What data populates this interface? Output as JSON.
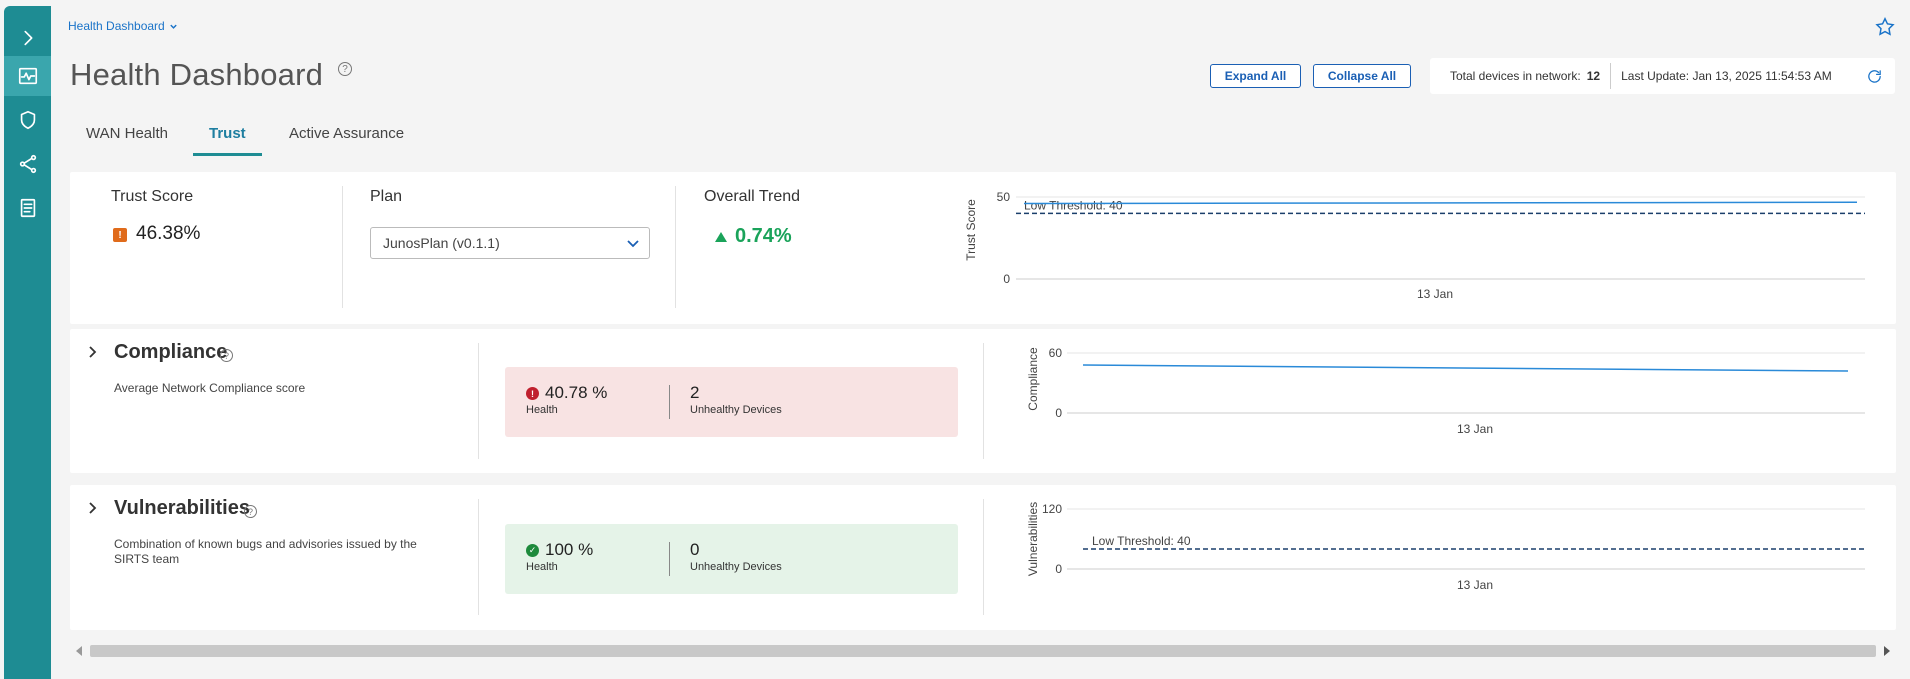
{
  "breadcrumb": "Health Dashboard",
  "page_title": "Health Dashboard",
  "help_glyph": "?",
  "buttons": {
    "expand_all": "Expand All",
    "collapse_all": "Collapse All"
  },
  "info": {
    "total_devices_label": "Total devices in network:",
    "total_devices_value": "12",
    "last_update": "Last Update: Jan 13, 2025 11:54:53 AM"
  },
  "tabs": [
    {
      "label": "WAN Health",
      "active": false
    },
    {
      "label": "Trust",
      "active": true
    },
    {
      "label": "Active Assurance",
      "active": false
    }
  ],
  "trust": {
    "score_label": "Trust Score",
    "score_value": "46.38%",
    "score_icon": "!",
    "plan_label": "Plan",
    "plan_value": "JunosPlan (v0.1.1)",
    "trend_label": "Overall Trend",
    "trend_value": "0.74%"
  },
  "compliance": {
    "title": "Compliance",
    "description": "Average Network Compliance score",
    "health_value": "40.78 %",
    "health_label": "Health",
    "health_icon": "!",
    "unhealthy_value": "2",
    "unhealthy_label": "Unhealthy Devices"
  },
  "vulnerabilities": {
    "title": "Vulnerabilities",
    "description": "Combination of known bugs and advisories issued by the SIRTS team",
    "health_value": "100 %",
    "health_label": "Health",
    "health_icon": "✓",
    "unhealthy_value": "0",
    "unhealthy_label": "Unhealthy Devices"
  },
  "colors": {
    "rail": "#1e8c93",
    "accent": "#1a5fb4",
    "line": "#2a8ad8",
    "threshold": "#1a3f6b",
    "trend_up": "#1aa35a",
    "warning": "#e06b1b",
    "error": "#c0202e",
    "success": "#1e8a3c"
  },
  "icons": [
    "chevron-right-icon",
    "pulse-icon",
    "shield-icon",
    "share-nodes-icon",
    "document-icon",
    "star-icon",
    "refresh-icon",
    "chevron-down-icon",
    "help-icon"
  ],
  "chart_data": [
    {
      "type": "line",
      "ylabel": "Trust Score",
      "ylim": [
        0,
        50
      ],
      "yticks": [
        "50",
        "0"
      ],
      "xtick": "13 Jan",
      "threshold": {
        "label": "Low Threshold: 40",
        "value": 40
      },
      "series": [
        {
          "values": [
            46.0,
            46.8
          ]
        }
      ]
    },
    {
      "type": "line",
      "ylabel": "Compliance",
      "ylim": [
        0,
        60
      ],
      "yticks": [
        "60",
        "0"
      ],
      "xtick": "13 Jan",
      "series": [
        {
          "values": [
            48,
            42
          ]
        }
      ]
    },
    {
      "type": "line",
      "ylabel": "Vulnerabilities",
      "ylim": [
        0,
        120
      ],
      "yticks": [
        "120",
        "0"
      ],
      "xtick": "13 Jan",
      "threshold": {
        "label": "Low Threshold: 40",
        "value": 40
      },
      "series": [
        {
          "values": []
        }
      ]
    }
  ]
}
